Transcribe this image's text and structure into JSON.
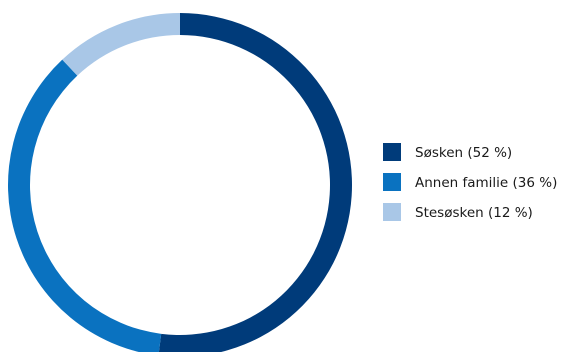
{
  "chart_data": {
    "type": "pie",
    "variant": "donut",
    "title": "",
    "series": [
      {
        "name": "Søsken (52 %)",
        "value": 52,
        "color": "#003b7a"
      },
      {
        "name": "Annen familie (36 %)",
        "value": 36,
        "color": "#0a72c0"
      },
      {
        "name": "Stesøsken (12 %)",
        "value": 12,
        "color": "#a9c7e7"
      }
    ],
    "start_angle_deg": 0,
    "direction": "clockwise",
    "legend_position": "right"
  }
}
